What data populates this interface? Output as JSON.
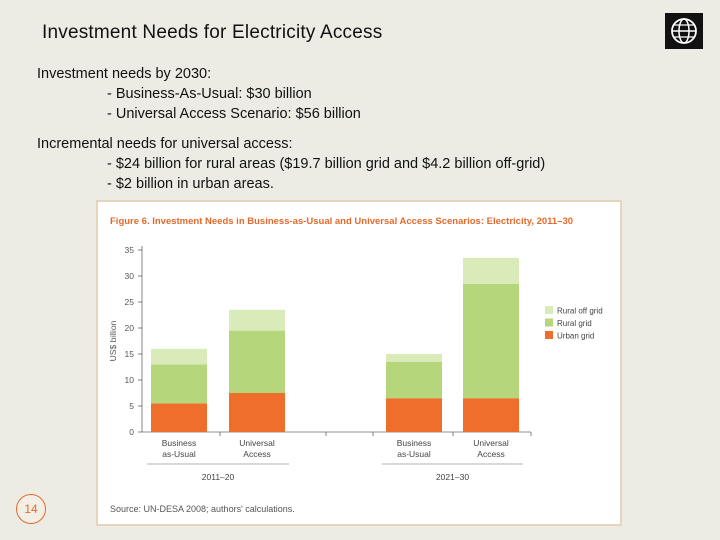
{
  "slide": {
    "title": "Investment Needs for Electricity Access",
    "page_number": "14"
  },
  "bullets": {
    "group1_heading": "Investment needs by 2030:",
    "group1_items": [
      "- Business-As-Usual: $30 billion",
      "- Universal Access Scenario: $56 billion"
    ],
    "group2_heading": "Incremental needs for universal access:",
    "group2_items": [
      "- $24 billion for rural areas ($19.7 billion grid and $4.2 billion off-grid)",
      "- $2 billion in urban areas."
    ]
  },
  "colors": {
    "rural_off_grid": "#d9ebb8",
    "rural_grid": "#b5d67a",
    "urban_grid": "#ef6e2c",
    "figure_title": "#e46a2c"
  },
  "chart_data": {
    "type": "bar",
    "stacked": true,
    "title": "Figure 6.  Investment Needs in Business-as-Usual and Universal Access Scenarios: Electricity, 2011–30",
    "ylabel": "US$ billion",
    "ylim": [
      0,
      35
    ],
    "yticks": [
      0,
      5,
      10,
      15,
      20,
      25,
      30,
      35
    ],
    "categories": [
      "Business\nas-Usual",
      "Universal\nAccess",
      "Business\nas-Usual",
      "Universal\nAccess"
    ],
    "groups": [
      {
        "label": "2011–20",
        "category_indices": [
          0,
          1
        ]
      },
      {
        "label": "2021–30",
        "category_indices": [
          2,
          3
        ]
      }
    ],
    "series": [
      {
        "name": "Urban grid",
        "color_key": "urban_grid",
        "values": [
          5.5,
          7.5,
          6.5,
          6.5
        ]
      },
      {
        "name": "Rural grid",
        "color_key": "rural_grid",
        "values": [
          7.5,
          12,
          7,
          22
        ]
      },
      {
        "name": "Rural off grid",
        "color_key": "rural_off_grid",
        "values": [
          3,
          4,
          1.5,
          5
        ]
      }
    ],
    "legend_order": [
      "Rural off grid",
      "Rural grid",
      "Urban grid"
    ],
    "source": "Source: UN-DESA 2008; authors' calculations."
  }
}
